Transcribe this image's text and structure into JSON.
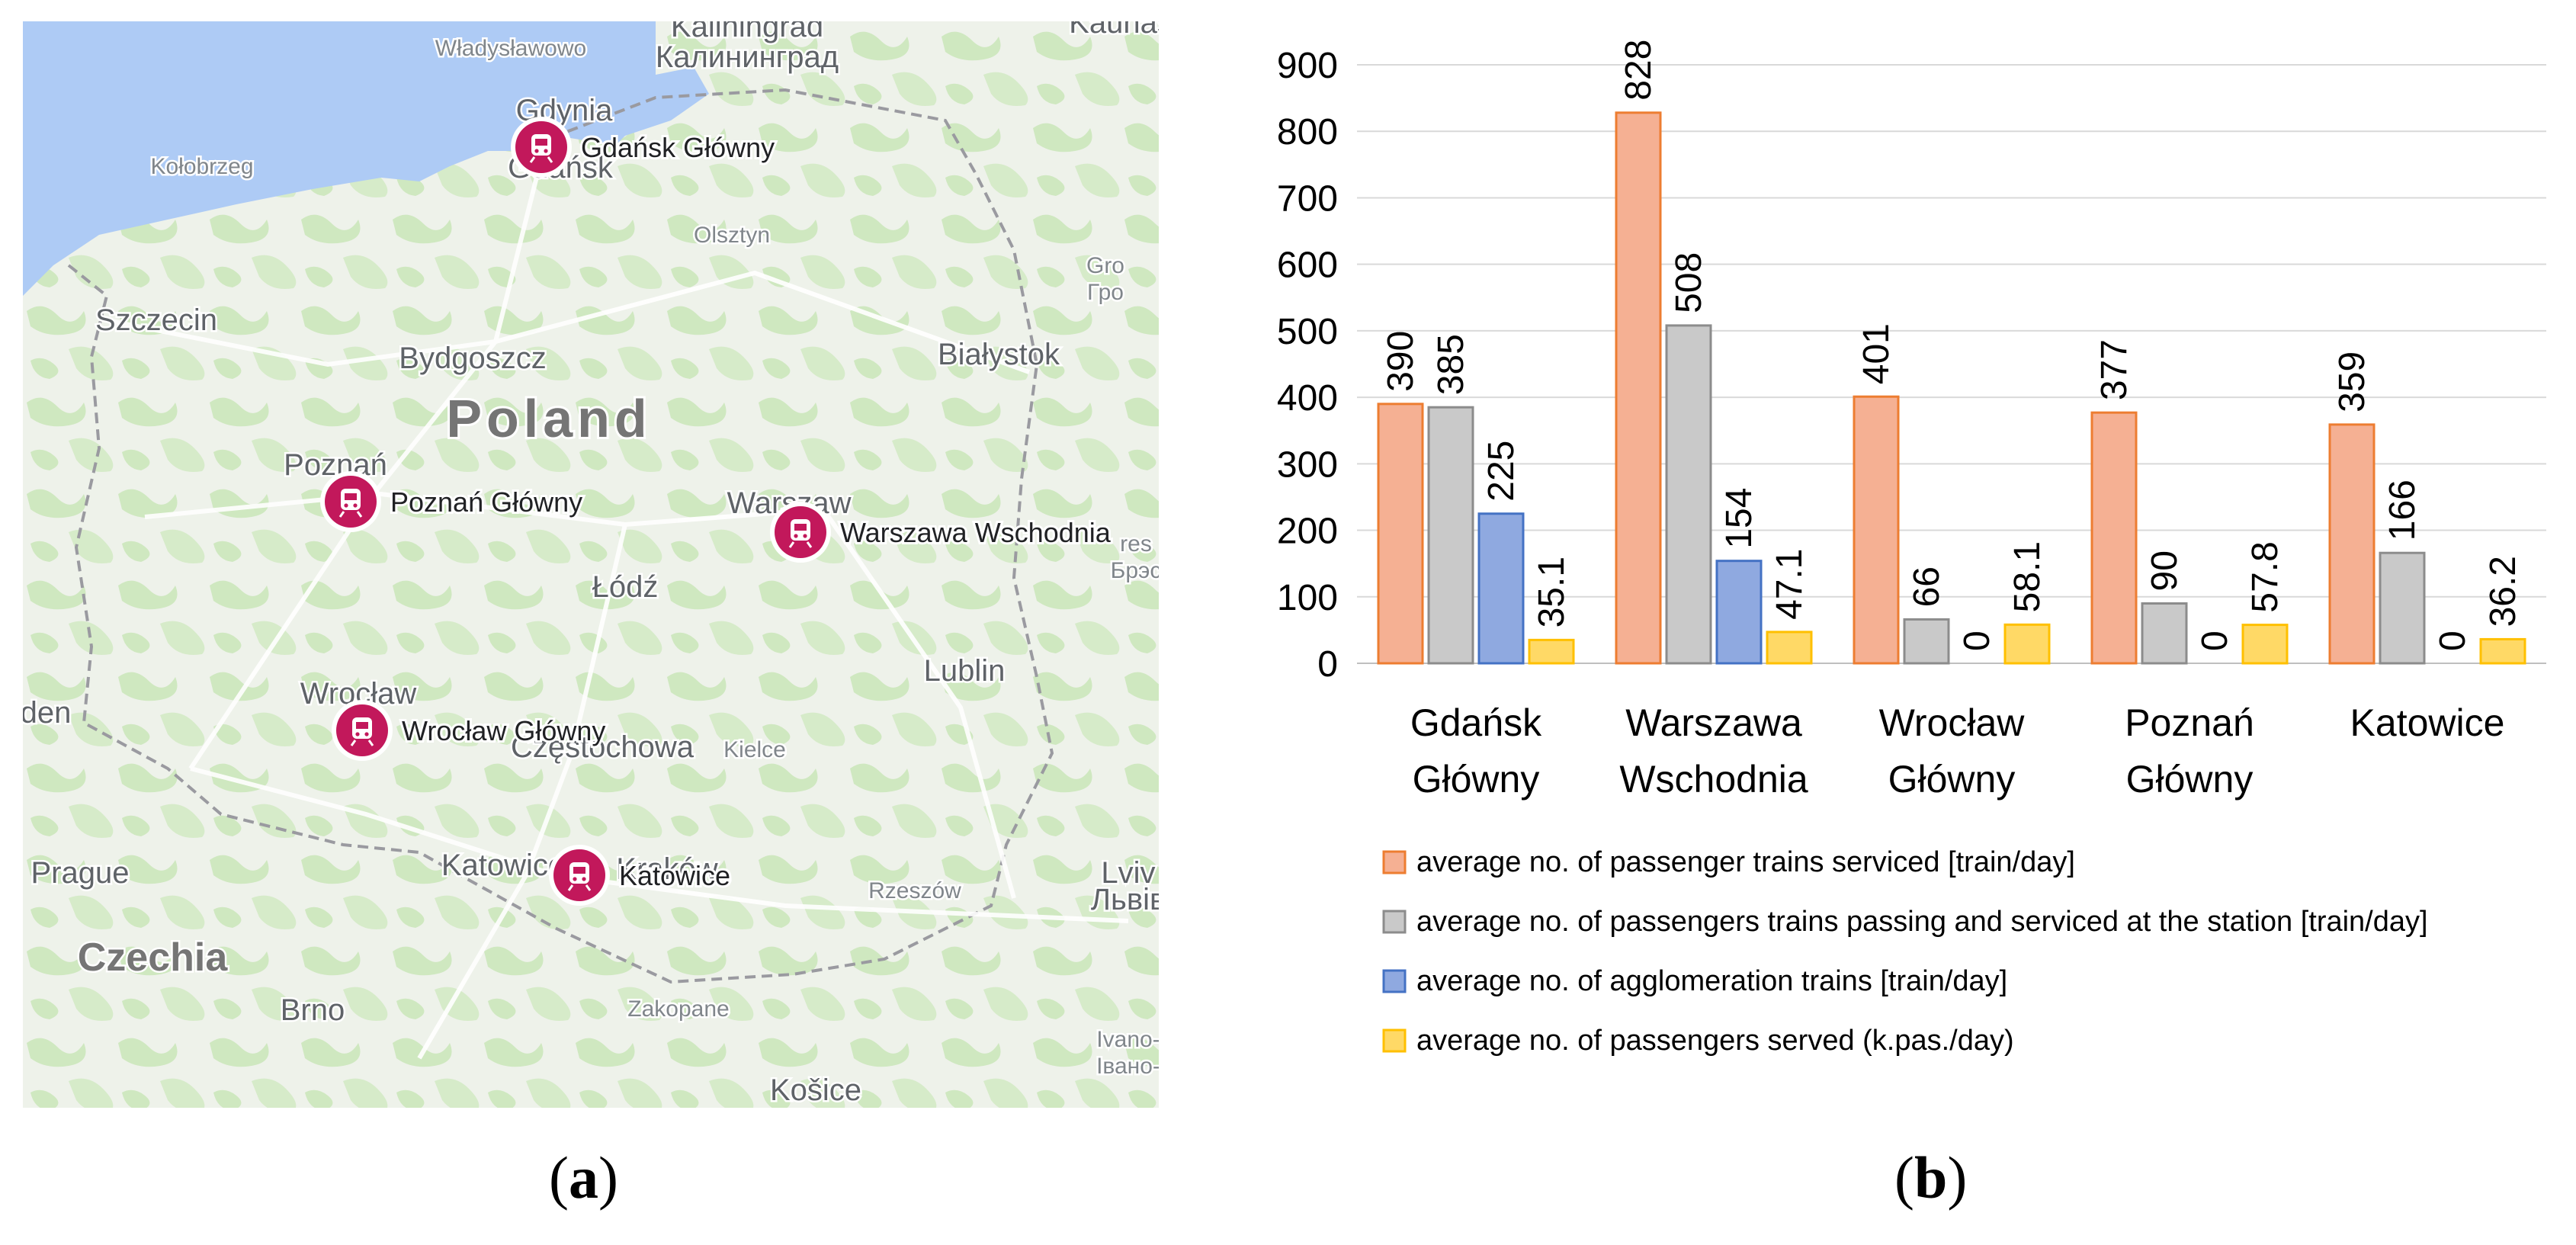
{
  "map": {
    "country_label": "Poland",
    "place_labels": [
      {
        "text": "Władysławowo",
        "kind": "town"
      },
      {
        "text": "Kaliningrad",
        "kind": "city"
      },
      {
        "text": "Калининград",
        "kind": "city"
      },
      {
        "text": "Kaunas",
        "kind": "city"
      },
      {
        "text": "Gdynia",
        "kind": "city"
      },
      {
        "text": "Gdańsk",
        "kind": "city"
      },
      {
        "text": "Kołobrzeg",
        "kind": "town"
      },
      {
        "text": "Olsztyn",
        "kind": "town"
      },
      {
        "text": "Gro",
        "kind": "town"
      },
      {
        "text": "Гро",
        "kind": "town"
      },
      {
        "text": "Szczecin",
        "kind": "city"
      },
      {
        "text": "Bydgoszcz",
        "kind": "city"
      },
      {
        "text": "Białystok",
        "kind": "city"
      },
      {
        "text": "Poznań",
        "kind": "city"
      },
      {
        "text": "Warszaw",
        "kind": "city"
      },
      {
        "text": "res",
        "kind": "town"
      },
      {
        "text": "Брэс",
        "kind": "town"
      },
      {
        "text": "Łódź",
        "kind": "city"
      },
      {
        "text": "Lublin",
        "kind": "city"
      },
      {
        "text": "Wrocław",
        "kind": "city"
      },
      {
        "text": "den",
        "kind": "city"
      },
      {
        "text": "Częstochowa",
        "kind": "city"
      },
      {
        "text": "Kielce",
        "kind": "town"
      },
      {
        "text": "Prague",
        "kind": "city"
      },
      {
        "text": "Katowice",
        "kind": "city"
      },
      {
        "text": "Kraków",
        "kind": "city"
      },
      {
        "text": "Rzeszów",
        "kind": "town"
      },
      {
        "text": "Lviv",
        "kind": "city"
      },
      {
        "text": "Львів",
        "kind": "city"
      },
      {
        "text": "Czechia",
        "kind": "country"
      },
      {
        "text": "Brno",
        "kind": "city"
      },
      {
        "text": "Zakopane",
        "kind": "town"
      },
      {
        "text": "Ivano-",
        "kind": "town"
      },
      {
        "text": "Івано-",
        "kind": "town"
      },
      {
        "text": "Košice",
        "kind": "city"
      }
    ],
    "stations": [
      "Gdańsk Główny",
      "Poznań Główny",
      "Warszawa Wschodnia",
      "Wrocław Główny",
      "Katowice"
    ],
    "colors": {
      "water": "#aecbf5",
      "land": "#f1f1ef",
      "forest": "#cfe8c0",
      "marker": "#c2185b"
    },
    "marker_icon": "train-icon"
  },
  "chart_data": {
    "type": "bar",
    "categories": [
      [
        "Gdańsk",
        "Główny"
      ],
      [
        "Warszawa",
        "Wschodnia"
      ],
      [
        "Wrocław",
        "Główny"
      ],
      [
        "Poznań",
        "Główny"
      ],
      [
        "Katowice"
      ]
    ],
    "series": [
      {
        "name": "average no. of passenger trains serviced [train/day]",
        "values": [
          390,
          828,
          401,
          377,
          359
        ],
        "labels": [
          "390",
          "828",
          "401",
          "377",
          "359"
        ],
        "color": "#f5b093",
        "stroke": "#ed7d31"
      },
      {
        "name": "average no. of passengers trains passing and serviced at the station [train/day]",
        "values": [
          385,
          508,
          66,
          90,
          166
        ],
        "labels": [
          "385",
          "508",
          "66",
          "90",
          "166"
        ],
        "color": "#c9c9c9",
        "stroke": "#8c8c8c"
      },
      {
        "name": "average no. of agglomeration trains [train/day]",
        "values": [
          225,
          154,
          0,
          0,
          0
        ],
        "labels": [
          "225",
          "154",
          "0",
          "0",
          "0"
        ],
        "color": "#8fa9e0",
        "stroke": "#4472c4"
      },
      {
        "name": "average no. of passengers served (k.pas./day)",
        "values": [
          35.1,
          47.1,
          58.1,
          57.8,
          36.2
        ],
        "labels": [
          "35.1",
          "47.1",
          "58.1",
          "57.8",
          "36.2"
        ],
        "color": "#ffd966",
        "stroke": "#ffc000"
      }
    ],
    "ylim": [
      0,
      900
    ],
    "yticks": [
      "0",
      "100",
      "200",
      "300",
      "400",
      "500",
      "600",
      "700",
      "800",
      "900"
    ],
    "grid": true,
    "legend_position": "bottom",
    "label_rotation": -90
  },
  "panel_labels": [
    "a",
    "b"
  ]
}
